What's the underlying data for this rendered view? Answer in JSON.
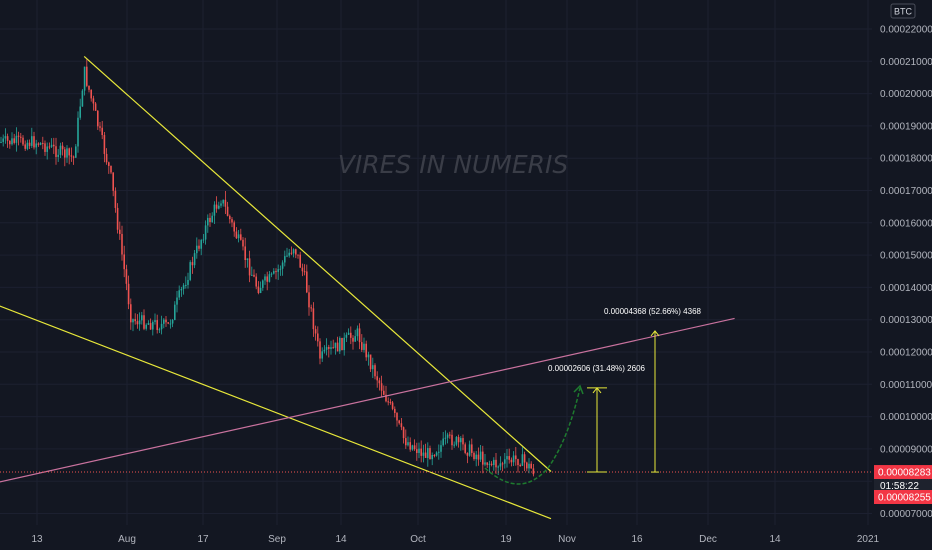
{
  "watermark": "VIRES IN NUMERIS",
  "currency_badge": "BTC",
  "price_tags": {
    "last": "0.00008283",
    "countdown": "01:58:22",
    "low": "0.00008255",
    "last_hidden_prefix": "0."
  },
  "annotations": [
    {
      "text": "0.00002606 (31.48%) 2606"
    },
    {
      "text": "0.00004368 (52.66%) 4368"
    }
  ],
  "colors": {
    "background": "#131722",
    "up_candle": "#26a69a",
    "down_candle": "#ef5350",
    "trendline": "#e8e83a",
    "pink_line": "#c9729e",
    "projection": "#1e7b2f",
    "price_tag": "#f23645"
  },
  "chart_data": {
    "type": "candlestick",
    "x_ticks": [
      "13",
      "Aug",
      "17",
      "Sep",
      "14",
      "Oct",
      "19",
      "Nov",
      "16",
      "Dec",
      "14",
      "2021"
    ],
    "y_ticks": [
      "0.00022000",
      "0.00021000",
      "0.00020000",
      "0.00019000",
      "0.00018000",
      "0.00017000",
      "0.00016000",
      "0.00015000",
      "0.00014000",
      "0.00013000",
      "0.00012000",
      "0.00011000",
      "0.00010000",
      "0.00009000",
      "0.00008000",
      "0.00007000"
    ],
    "ylim": [
      6.65e-05,
      0.0002265
    ],
    "last_price": 8.283e-05,
    "anchors": [
      {
        "date": "Jul 13",
        "price": 0.000185
      },
      {
        "date": "Jul 20",
        "price": 0.00018
      },
      {
        "date": "Jul 22",
        "price": 0.000207
      },
      {
        "date": "Jul 27",
        "price": 0.000175
      },
      {
        "date": "Jul 31",
        "price": 0.00013
      },
      {
        "date": "Aug 7",
        "price": 0.000128
      },
      {
        "date": "Aug 14",
        "price": 0.000158
      },
      {
        "date": "Aug 17",
        "price": 0.000168
      },
      {
        "date": "Aug 24",
        "price": 0.00014
      },
      {
        "date": "Aug 27",
        "price": 0.000143
      },
      {
        "date": "Aug 31",
        "price": 0.000153
      },
      {
        "date": "Sep 2",
        "price": 0.000143
      },
      {
        "date": "Sep 5",
        "price": 0.000118
      },
      {
        "date": "Sep 12",
        "price": 0.000126
      },
      {
        "date": "Sep 17",
        "price": 0.000108
      },
      {
        "date": "Sep 21",
        "price": 9.3e-05
      },
      {
        "date": "Sep 25",
        "price": 8.8e-05
      },
      {
        "date": "Sep 30",
        "price": 9.3e-05
      },
      {
        "date": "Oct 4",
        "price": 8.9e-05
      },
      {
        "date": "Oct 8",
        "price": 8.5e-05
      },
      {
        "date": "Oct 13",
        "price": 8.7e-05
      },
      {
        "date": "Oct 16",
        "price": 8.283e-05
      }
    ],
    "lines": [
      {
        "name": "upper-trendline",
        "from": {
          "date": "Jul 22",
          "price": 0.0002115
        },
        "to": {
          "date": "Oct 19",
          "price": 8.3e-05
        }
      },
      {
        "name": "lower-trendline",
        "from": {
          "date": "Jul 1",
          "price": 0.0001373
        },
        "to": {
          "date": "Oct 19",
          "price": 6.84e-05
        }
      },
      {
        "name": "pink-line",
        "from": {
          "date": "Jul 1",
          "price": 7.8e-05
        },
        "to": {
          "date": "Nov 23",
          "price": 0.0001304
        }
      },
      {
        "name": "last-price-line",
        "price": 8.283e-05
      }
    ],
    "measurements": [
      {
        "from": 8.283e-05,
        "to": 0.00010889,
        "change": 2.606e-05,
        "percent": 31.48,
        "ticks": 2606
      },
      {
        "from": 8.283e-05,
        "to": 0.00012651,
        "change": 4.368e-05,
        "percent": 52.66,
        "ticks": 4368
      }
    ]
  }
}
